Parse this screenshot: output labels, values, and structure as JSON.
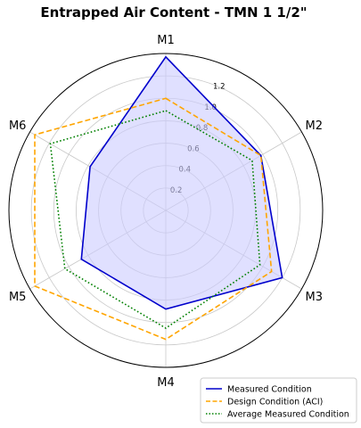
{
  "chart_data": {
    "type": "radar",
    "title": "Entrapped Air Content - TMN 1 1/2\"",
    "axes": [
      "M1",
      "M2",
      "M3",
      "M4",
      "M5",
      "M6"
    ],
    "rlim": [
      0,
      1.4
    ],
    "rticks": [
      0.2,
      0.4,
      0.6,
      0.8,
      1.0,
      1.2
    ],
    "rtick_labels": [
      "0.2",
      "0.4",
      "0.6",
      "0.8",
      "1.0",
      "1.2"
    ],
    "grid": true,
    "legend_position": "bottom-right",
    "series": [
      {
        "name": "Measured Condition",
        "values": [
          1.37,
          0.98,
          1.2,
          0.88,
          0.87,
          0.78
        ],
        "color": "#0000cc",
        "fill": "#ccccff",
        "style": "solid"
      },
      {
        "name": "Design Condition (ACI)",
        "values": [
          1.0,
          0.98,
          1.09,
          1.15,
          1.35,
          1.35
        ],
        "color": "#ffa500",
        "style": "dashed"
      },
      {
        "name": "Average Measured Condition",
        "values": [
          0.89,
          0.89,
          0.97,
          1.05,
          1.04,
          1.19
        ],
        "color": "#008000",
        "style": "dotted"
      }
    ]
  }
}
